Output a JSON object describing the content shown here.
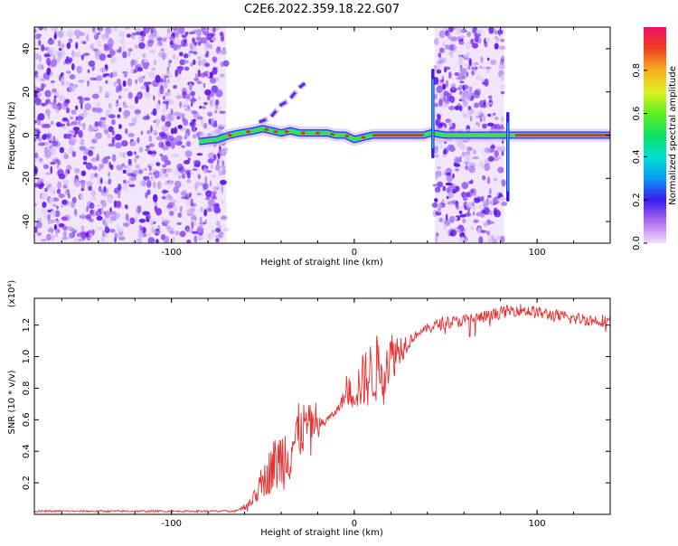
{
  "title": "C2E6.2022.359.18.22.G07",
  "chart_data": [
    {
      "type": "heatmap",
      "xlabel": "Height of straight line (km)",
      "ylabel": "Frequency (Hz)",
      "xlim": [
        -175,
        140
      ],
      "ylim": [
        -50,
        50
      ],
      "xticks": [
        "-100",
        "0",
        "100"
      ],
      "xtick_values": [
        -100,
        0,
        100
      ],
      "yticks": [
        "-40",
        "-20",
        "0",
        "20",
        "40"
      ],
      "ytick_values": [
        -40,
        -20,
        0,
        20,
        40
      ],
      "noise_regions": [
        {
          "x_start": -175,
          "x_end": -70
        },
        {
          "x_start": 44,
          "x_end": 82
        }
      ],
      "signal_trace": [
        [
          -85,
          -3
        ],
        [
          -75,
          -2
        ],
        [
          -68,
          0
        ],
        [
          -62,
          1
        ],
        [
          -55,
          2
        ],
        [
          -50,
          3
        ],
        [
          -45,
          2
        ],
        [
          -40,
          1
        ],
        [
          -35,
          2
        ],
        [
          -30,
          1
        ],
        [
          -25,
          1
        ],
        [
          -20,
          1
        ],
        [
          -15,
          1
        ],
        [
          -10,
          0
        ],
        [
          -5,
          0
        ],
        [
          0,
          -2
        ],
        [
          5,
          -1
        ],
        [
          10,
          0
        ],
        [
          20,
          0
        ],
        [
          30,
          0
        ],
        [
          38,
          0
        ],
        [
          42,
          1
        ],
        [
          50,
          0
        ],
        [
          70,
          0
        ],
        [
          84,
          0
        ],
        [
          90,
          0
        ],
        [
          100,
          0
        ],
        [
          120,
          0
        ],
        [
          140,
          0
        ]
      ],
      "colorbar": {
        "label": "Normalized spectral amplitude",
        "ticks": [
          "0.0",
          "0.2",
          "0.4",
          "0.6",
          "0.8"
        ],
        "tick_values": [
          0.0,
          0.2,
          0.4,
          0.6,
          0.8
        ],
        "range": [
          0,
          1
        ]
      }
    },
    {
      "type": "line",
      "xlabel": "Height of straight line (km)",
      "ylabel": "SNR (10 * v/v)",
      "y_multiplier": "(x10⁴)",
      "xlim": [
        -175,
        140
      ],
      "ylim": [
        0,
        1.37
      ],
      "xticks": [
        "-100",
        "0",
        "100"
      ],
      "xtick_values": [
        -100,
        0,
        100
      ],
      "yticks": [
        "0.2",
        "0.4",
        "0.6",
        "0.8",
        "1.0",
        "1.2"
      ],
      "ytick_values": [
        0.2,
        0.4,
        0.6,
        0.8,
        1.0,
        1.2
      ],
      "color": "#e83030",
      "x": [
        -175,
        -150,
        -120,
        -100,
        -80,
        -65,
        -60,
        -55,
        -50,
        -45,
        -40,
        -35,
        -30,
        -25,
        -20,
        -15,
        -10,
        -5,
        0,
        5,
        10,
        15,
        20,
        25,
        30,
        35,
        40,
        45,
        50,
        55,
        60,
        65,
        70,
        75,
        80,
        85,
        90,
        95,
        100,
        105,
        110,
        115,
        120,
        125,
        130,
        135,
        140
      ],
      "y": [
        0.02,
        0.02,
        0.02,
        0.02,
        0.02,
        0.02,
        0.05,
        0.1,
        0.2,
        0.3,
        0.35,
        0.42,
        0.52,
        0.58,
        0.55,
        0.6,
        0.65,
        0.75,
        0.78,
        0.85,
        0.9,
        0.95,
        1.0,
        1.05,
        1.1,
        1.15,
        1.18,
        1.2,
        1.22,
        1.22,
        1.23,
        1.24,
        1.25,
        1.26,
        1.28,
        1.29,
        1.3,
        1.29,
        1.28,
        1.27,
        1.26,
        1.25,
        1.24,
        1.24,
        1.23,
        1.23,
        1.23
      ]
    }
  ]
}
